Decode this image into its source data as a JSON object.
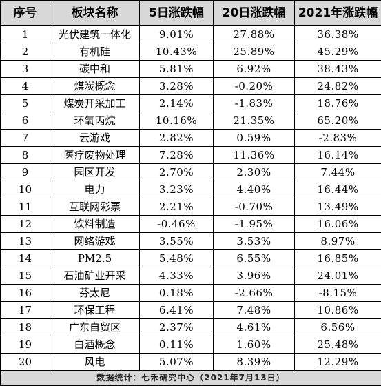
{
  "header": {
    "col_index": "序号",
    "col_sector": "板块名称",
    "col_5d": "5日涨跌幅",
    "col_20d": "20日涨跌幅",
    "col_2021": "2021年涨跌幅"
  },
  "rows": [
    {
      "index": "1",
      "sector": "光伏建筑一体化",
      "chg_5d": "9.01%",
      "chg_20d": "27.88%",
      "chg_2021": "36.38%"
    },
    {
      "index": "2",
      "sector": "有机硅",
      "chg_5d": "10.43%",
      "chg_20d": "25.89%",
      "chg_2021": "45.29%"
    },
    {
      "index": "3",
      "sector": "碳中和",
      "chg_5d": "5.81%",
      "chg_20d": "6.92%",
      "chg_2021": "38.43%"
    },
    {
      "index": "4",
      "sector": "煤炭概念",
      "chg_5d": "3.28%",
      "chg_20d": "-0.20%",
      "chg_2021": "24.82%"
    },
    {
      "index": "5",
      "sector": "煤炭开采加工",
      "chg_5d": "2.14%",
      "chg_20d": "-1.83%",
      "chg_2021": "18.76%"
    },
    {
      "index": "6",
      "sector": "环氧丙烷",
      "chg_5d": "10.16%",
      "chg_20d": "21.35%",
      "chg_2021": "65.20%"
    },
    {
      "index": "7",
      "sector": "云游戏",
      "chg_5d": "2.82%",
      "chg_20d": "0.59%",
      "chg_2021": "-2.83%"
    },
    {
      "index": "8",
      "sector": "医疗废物处理",
      "chg_5d": "7.28%",
      "chg_20d": "11.36%",
      "chg_2021": "16.14%"
    },
    {
      "index": "9",
      "sector": "园区开发",
      "chg_5d": "2.70%",
      "chg_20d": "2.30%",
      "chg_2021": "7.44%"
    },
    {
      "index": "10",
      "sector": "电力",
      "chg_5d": "3.23%",
      "chg_20d": "4.40%",
      "chg_2021": "16.44%"
    },
    {
      "index": "11",
      "sector": "互联网彩票",
      "chg_5d": "2.21%",
      "chg_20d": "-0.70%",
      "chg_2021": "13.49%"
    },
    {
      "index": "12",
      "sector": "饮料制造",
      "chg_5d": "-0.46%",
      "chg_20d": "-1.95%",
      "chg_2021": "16.06%"
    },
    {
      "index": "13",
      "sector": "网络游戏",
      "chg_5d": "3.55%",
      "chg_20d": "3.53%",
      "chg_2021": "8.97%"
    },
    {
      "index": "14",
      "sector": "PM2.5",
      "chg_5d": "5.48%",
      "chg_20d": "6.55%",
      "chg_2021": "16.85%"
    },
    {
      "index": "15",
      "sector": "石油矿业开采",
      "chg_5d": "4.33%",
      "chg_20d": "3.96%",
      "chg_2021": "24.01%"
    },
    {
      "index": "16",
      "sector": "芬太尼",
      "chg_5d": "0.18%",
      "chg_20d": "-2.66%",
      "chg_2021": "-8.15%"
    },
    {
      "index": "17",
      "sector": "环保工程",
      "chg_5d": "6.41%",
      "chg_20d": "7.48%",
      "chg_2021": "10.86%"
    },
    {
      "index": "18",
      "sector": "广东自贸区",
      "chg_5d": "2.37%",
      "chg_20d": "4.61%",
      "chg_2021": "6.56%"
    },
    {
      "index": "19",
      "sector": "白酒概念",
      "chg_5d": "0.11%",
      "chg_20d": "1.60%",
      "chg_2021": "25.48%"
    },
    {
      "index": "20",
      "sector": "风电",
      "chg_5d": "5.07%",
      "chg_20d": "8.39%",
      "chg_2021": "12.29%"
    }
  ],
  "footer": {
    "source": "数据统计：七禾研究中心（2021年7月13日）"
  }
}
